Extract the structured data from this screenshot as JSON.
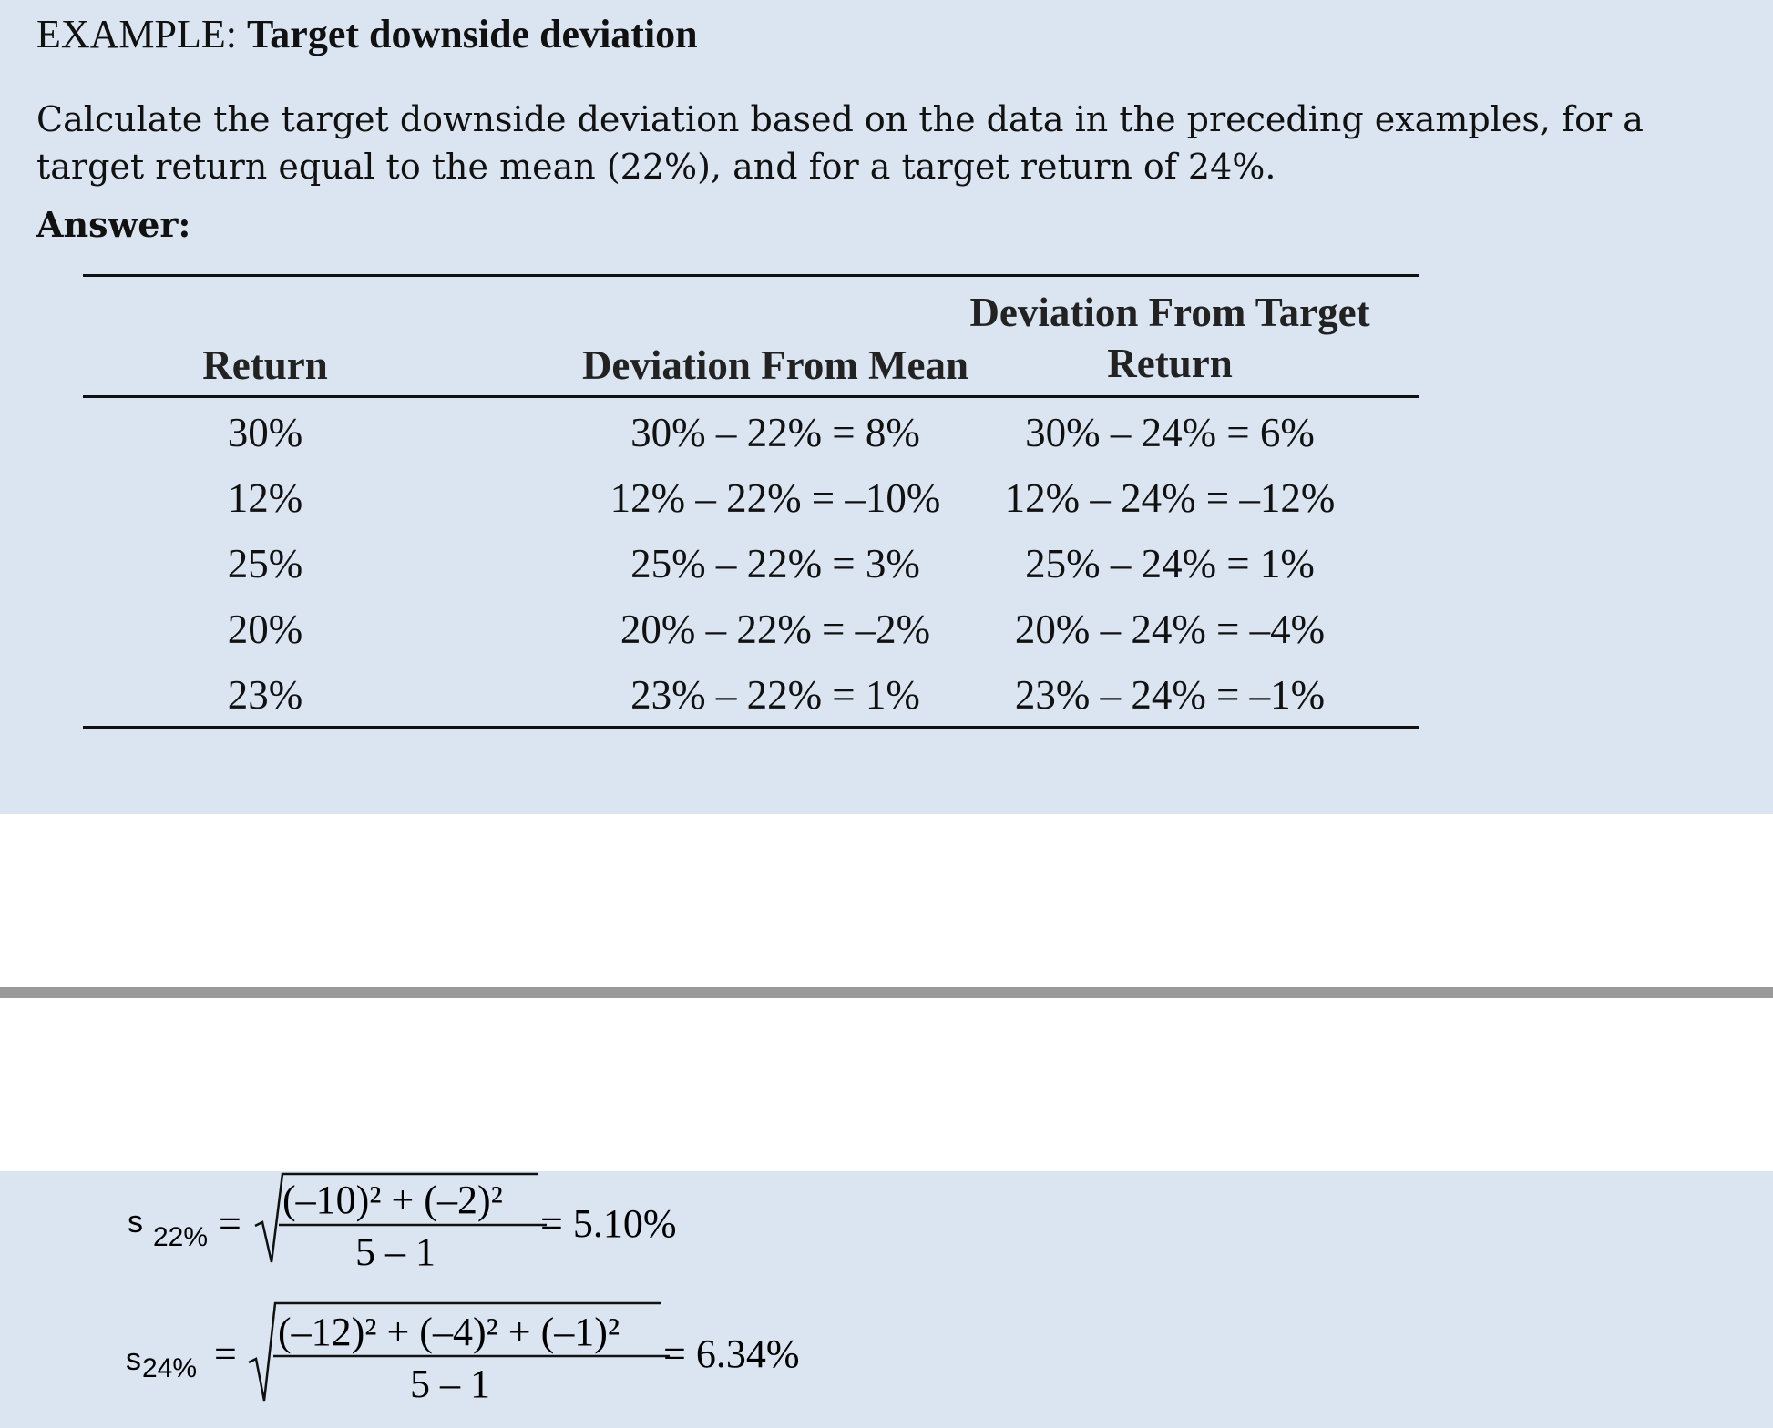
{
  "example": {
    "prefix": "EXAMPLE:",
    "title": "Target downside deviation",
    "question": "Calculate the target downside deviation based on the data in the preceding examples, for a target return equal to the mean (22%), and for a target return of 24%.",
    "answer_label": "Answer:"
  },
  "table": {
    "headers": [
      "Return",
      "Deviation From Mean",
      "Deviation From Target",
      "Return"
    ],
    "rows": [
      {
        "ret": "30%",
        "dev_mean": "30% – 22% = 8%",
        "dev_target": "30% – 24% = 6%"
      },
      {
        "ret": "12%",
        "dev_mean": "12% – 22% = –10%",
        "dev_target": "12% – 24% = –12%"
      },
      {
        "ret": "25%",
        "dev_mean": "25% – 22% = 3%",
        "dev_target": "25% – 24% = 1%"
      },
      {
        "ret": "20%",
        "dev_mean": "20% – 22% = –2%",
        "dev_target": "20% – 24% = –4%"
      },
      {
        "ret": "23%",
        "dev_mean": "23% – 22% = 1%",
        "dev_target": "23% – 24% = –1%"
      }
    ]
  },
  "formulas": [
    {
      "symbol": "s",
      "subscript": "22%",
      "eq": "=",
      "numerator": "(–10)² + (–2)²",
      "denominator": "5 – 1",
      "result": "= 5.10%"
    },
    {
      "symbol": "s",
      "subscript": "24%",
      "eq": "=",
      "numerator": "(–12)² + (–4)² + (–1)²",
      "denominator": "5 – 1",
      "result": "= 6.34%"
    }
  ]
}
